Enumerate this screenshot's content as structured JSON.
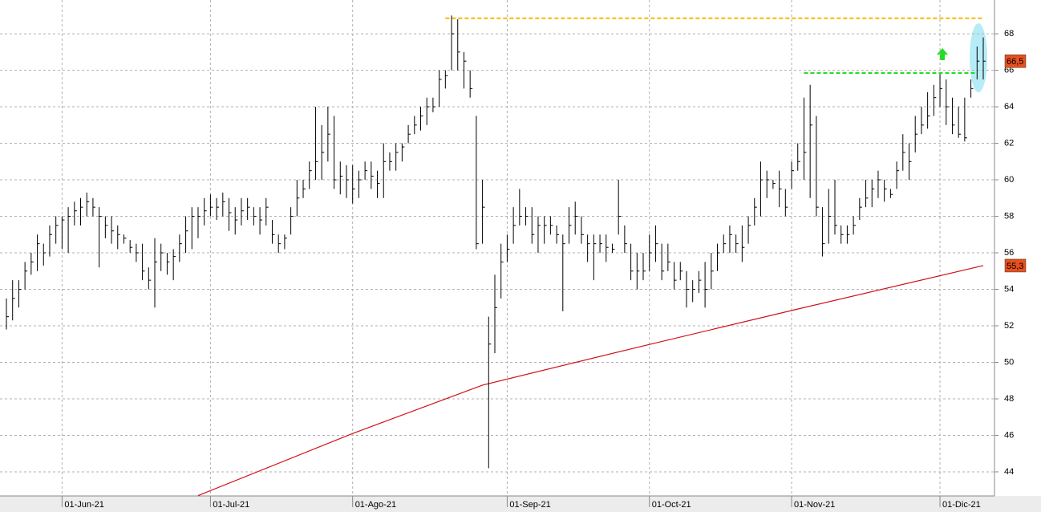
{
  "chart_data": {
    "type": "ohlc",
    "categories": [
      null,
      null,
      null,
      null,
      null,
      null,
      null,
      null,
      null,
      "01-Jun-21",
      null,
      null,
      null,
      null,
      null,
      null,
      null,
      null,
      null,
      null,
      null,
      null,
      null,
      null,
      null,
      null,
      null,
      null,
      null,
      null,
      null,
      null,
      null,
      "01-Jul-21",
      null,
      null,
      null,
      null,
      null,
      null,
      null,
      null,
      null,
      null,
      null,
      null,
      null,
      null,
      null,
      null,
      null,
      null,
      null,
      null,
      null,
      null,
      "01-Ago-21",
      null,
      null,
      null,
      null,
      null,
      null,
      null,
      null,
      null,
      null,
      null,
      null,
      null,
      null,
      null,
      null,
      null,
      null,
      null,
      null,
      null,
      null,
      null,
      null,
      "01-Sep-21",
      null,
      null,
      null,
      null,
      null,
      null,
      null,
      null,
      null,
      null,
      null,
      null,
      null,
      null,
      null,
      null,
      null,
      null,
      null,
      null,
      null,
      null,
      "01-Oct-21",
      null,
      null,
      null,
      null,
      null,
      null,
      null,
      null,
      null,
      null,
      null,
      null,
      null,
      null,
      null,
      null,
      null,
      null,
      null,
      null,
      null,
      null,
      "01-Nov-21",
      null,
      null,
      null,
      null,
      null,
      null,
      null,
      null,
      null,
      null,
      null,
      null,
      null,
      null,
      null,
      null,
      null,
      null,
      null,
      null,
      null,
      null,
      null,
      "01-Dic-21",
      null,
      null,
      null,
      null,
      null,
      null,
      null
    ],
    "high": [
      53.5,
      54.5,
      54.5,
      55.5,
      56,
      57,
      56.5,
      57.5,
      58,
      58,
      58.5,
      58.8,
      59,
      59.3,
      59,
      58.5,
      58,
      58,
      57.5,
      57,
      56.7,
      56.5,
      56.5,
      55.2,
      56.8,
      56.5,
      56,
      56.2,
      57,
      58,
      58.5,
      58.5,
      59,
      59.2,
      59,
      59.3,
      59,
      58.5,
      59,
      59,
      58.5,
      58.5,
      59,
      57.8,
      57,
      57,
      58.5,
      60,
      60,
      61,
      64,
      63,
      64,
      63.5,
      61,
      60.8,
      60.8,
      60.5,
      61,
      61,
      60.5,
      62,
      61.5,
      62,
      62,
      63,
      63.5,
      64,
      64.5,
      64.5,
      66,
      66,
      69,
      68.8,
      67,
      66,
      63.5,
      60,
      52.5,
      54.8,
      56.5,
      57,
      58.5,
      59.5,
      58.5,
      58.5,
      58,
      58,
      58,
      57.5,
      57,
      58.5,
      58.8,
      58,
      57,
      57,
      57,
      57,
      56.5,
      60,
      57.5,
      56.5,
      56,
      56,
      57,
      57.5,
      56.5,
      56.5,
      55.5,
      55.5,
      55,
      54.5,
      55,
      55.5,
      56,
      56.5,
      57,
      57.5,
      57,
      57.5,
      58,
      59,
      61,
      60.5,
      60,
      60.5,
      59.5,
      61,
      62,
      64.5,
      65.2,
      63.5,
      58.5,
      59.5,
      60,
      57.5,
      57.5,
      58,
      59,
      60,
      60,
      60.5,
      60,
      59.5,
      61,
      62.5,
      62,
      63.5,
      64,
      64.8,
      65.2,
      65.8,
      65.5,
      64.5,
      64,
      64.5,
      65.5,
      67.3,
      67.8
    ],
    "low": [
      51.8,
      52.3,
      53,
      54,
      54.8,
      55,
      55.3,
      55.8,
      56.5,
      56.2,
      56,
      57.5,
      57.5,
      58,
      58,
      55.2,
      56.8,
      56.5,
      56.2,
      56.5,
      56,
      55.5,
      54.5,
      54,
      53,
      55,
      54.8,
      54.5,
      55.5,
      56,
      56.2,
      56.8,
      57.5,
      58,
      57.8,
      58,
      57.2,
      57,
      57.5,
      57.8,
      57.5,
      57,
      57.5,
      56.5,
      56,
      56.2,
      57,
      58,
      59,
      59.5,
      60,
      60,
      61,
      59.5,
      59.2,
      59,
      58.7,
      59,
      60,
      59.5,
      59,
      59,
      60.5,
      60.5,
      61,
      62,
      62.5,
      62.7,
      63,
      63.7,
      64,
      65,
      66,
      66,
      65,
      64.5,
      56.2,
      56.5,
      44.2,
      50.5,
      53.5,
      55.5,
      56.5,
      57.5,
      57.5,
      56.5,
      56,
      56.5,
      57,
      56.5,
      52.8,
      56.5,
      57,
      56.5,
      55.5,
      54.5,
      56,
      55.5,
      56,
      57,
      56,
      54.5,
      54,
      54.5,
      55,
      55.5,
      54.5,
      55,
      54,
      54.5,
      53,
      53.3,
      53.8,
      53,
      54,
      55,
      56,
      56,
      56,
      55.5,
      56.5,
      57.5,
      58,
      59,
      59.5,
      58.5,
      58,
      59.5,
      60.5,
      60,
      59,
      58,
      55.8,
      56.5,
      57,
      56.5,
      56.5,
      57,
      57.8,
      58.5,
      58.5,
      59,
      58.8,
      59,
      59.5,
      60.5,
      60,
      61.5,
      62.5,
      62.8,
      63.5,
      64,
      63,
      62.5,
      62.3,
      62.1,
      64.5,
      65.5,
      65.5
    ],
    "close": [
      52.5,
      53.5,
      54,
      55,
      55.5,
      56.5,
      56,
      57,
      57.5,
      57.8,
      58,
      58.3,
      58.5,
      58.8,
      58.5,
      58,
      57.5,
      57.2,
      57,
      56.8,
      56.3,
      56,
      55,
      54.5,
      55.5,
      56,
      55.5,
      55.8,
      56.5,
      57.2,
      58,
      58,
      58.3,
      58.5,
      58.5,
      58.8,
      58.2,
      57.8,
      58.3,
      58.5,
      58,
      57.8,
      58.5,
      57,
      56.5,
      56.8,
      58,
      59,
      59.5,
      60.5,
      61,
      61.5,
      62.5,
      60,
      60.2,
      60,
      59.5,
      60,
      60.5,
      60.2,
      59.8,
      61,
      61,
      61.5,
      61.8,
      62.5,
      63,
      63.5,
      64,
      64,
      65.5,
      65.7,
      68,
      67,
      66.5,
      65,
      56.5,
      58.5,
      51,
      53,
      55.5,
      56.2,
      57.5,
      58,
      58,
      57,
      57.5,
      57.5,
      57.5,
      57,
      56.5,
      57.5,
      58,
      57,
      56.5,
      56.5,
      56.5,
      56.3,
      56.2,
      58,
      56.5,
      55,
      55,
      55,
      56,
      56.5,
      55,
      55.5,
      54.5,
      55,
      54,
      54,
      54.5,
      54,
      55,
      56,
      56.5,
      57,
      56.5,
      56.3,
      57.5,
      58.5,
      60,
      60,
      59.8,
      59.5,
      58.5,
      60.5,
      61,
      61.5,
      63,
      58.5,
      56.5,
      58,
      57.5,
      57,
      57,
      57.5,
      58.5,
      59,
      59.5,
      60,
      59.5,
      59.2,
      60.5,
      61.5,
      61,
      62.5,
      63,
      63.5,
      64.5,
      65,
      64,
      63,
      62.5,
      62.3,
      65,
      66.5,
      66.5
    ],
    "color": "#000000",
    "average": {
      "color": "#d0101a",
      "x": [
        31,
        56,
        77,
        103,
        129,
        158
      ],
      "values": [
        42.7,
        46.1,
        48.75,
        50.9,
        53,
        55.3
      ]
    },
    "hlines": [
      {
        "value": 68.85,
        "color": "#f5b800",
        "from": 71,
        "to": 158
      },
      {
        "value": 65.85,
        "color": "#22dd22",
        "from": 129,
        "to": 157
      }
    ],
    "price_labels": [
      {
        "value": 66.5,
        "label": "66,5"
      },
      {
        "value": 55.3,
        "label": "55,3"
      }
    ],
    "ylim": [
      42.68,
      69.85
    ],
    "yticks": [
      44,
      46,
      48,
      50,
      52,
      54,
      56,
      58,
      60,
      62,
      64,
      66,
      68
    ],
    "grid": true
  }
}
